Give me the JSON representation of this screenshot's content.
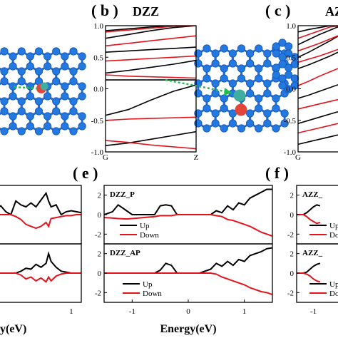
{
  "panel_labels": {
    "b": "( b )",
    "c": "( c )",
    "e": "( e )",
    "f": "( f )"
  },
  "titles": {
    "b": "DZZ",
    "c": "AZ"
  },
  "colors": {
    "up": "#000000",
    "down": "#e4131b",
    "atom": "#2379e0",
    "bond": "#2a6fd0",
    "arrow": "#1fbf4a",
    "defect_red": "#e2453c",
    "defect_teal": "#3fae9f"
  },
  "band_b": {
    "xticks": [
      "G",
      "Z"
    ],
    "yticks": [
      "1.0",
      "0.5",
      "0.0",
      "-0.5",
      "-1.0"
    ]
  },
  "band_c": {
    "xticks": [
      "G"
    ],
    "yticks": [
      "1.0",
      "0.5",
      "0.0",
      "-0.5",
      "-1.0"
    ]
  },
  "dos_e_top": {
    "label": "DZZ_P",
    "legend": [
      "Up",
      "Down"
    ],
    "yticks": [
      "2",
      "0",
      "-2"
    ]
  },
  "dos_e_bot": {
    "label": "DZZ_AP",
    "legend": [
      "Up",
      "Down"
    ],
    "yticks": [
      "2",
      "0",
      "-2"
    ]
  },
  "dos_e_xaxis": {
    "xlabel": "Energy(eV)",
    "xticks": [
      "-1",
      "0",
      "1"
    ]
  },
  "dos_f_top": {
    "label": "AZZ_",
    "legend": [
      "Up",
      "Do"
    ],
    "yticks": [
      "2",
      "0",
      "-2"
    ]
  },
  "dos_f_bot": {
    "label": "AZZ_",
    "legend": [
      "Up",
      "Do"
    ],
    "yticks": [
      "2",
      "0",
      "-2"
    ]
  },
  "dos_f_xaxis": {
    "xticks": [
      "-1"
    ]
  },
  "dos_d_xaxis": {
    "xlabel": "y(eV)",
    "xticks": [
      "1"
    ]
  },
  "chart_data": [
    {
      "type": "line",
      "panel": "b",
      "title": "DZZ",
      "xlabel": "",
      "ylabel": "",
      "ylim": [
        -1.0,
        1.0
      ],
      "x": [
        0,
        0.25,
        0.5,
        0.75,
        1.0
      ],
      "series": [
        {
          "spin": "up",
          "values": [
            0.92,
            0.95,
            0.98,
            1.0,
            1.0
          ]
        },
        {
          "spin": "up",
          "values": [
            0.8,
            0.86,
            0.92,
            0.97,
            1.0
          ]
        },
        {
          "spin": "up",
          "values": [
            0.58,
            0.6,
            0.62,
            0.64,
            0.66
          ]
        },
        {
          "spin": "up",
          "values": [
            0.25,
            0.29,
            0.34,
            0.39,
            0.45
          ]
        },
        {
          "spin": "up",
          "values": [
            0.14,
            0.14,
            0.14,
            0.14,
            0.14
          ]
        },
        {
          "spin": "up",
          "values": [
            -0.42,
            -0.33,
            -0.18,
            -0.04,
            0.06
          ]
        },
        {
          "spin": "up",
          "values": [
            -0.9,
            -0.86,
            -0.8,
            -0.74,
            -0.68
          ]
        },
        {
          "spin": "down",
          "values": [
            0.9,
            0.93,
            0.96,
            0.99,
            1.0
          ]
        },
        {
          "spin": "down",
          "values": [
            0.68,
            0.72,
            0.76,
            0.8,
            0.84
          ]
        },
        {
          "spin": "down",
          "values": [
            0.44,
            0.46,
            0.48,
            0.5,
            0.52
          ]
        },
        {
          "spin": "down",
          "values": [
            0.22,
            0.2,
            0.19,
            0.18,
            0.17
          ]
        },
        {
          "spin": "down",
          "values": [
            -0.5,
            -0.48,
            -0.47,
            -0.46,
            -0.45
          ]
        },
        {
          "spin": "down",
          "values": [
            -0.82,
            -0.85,
            -0.89,
            -0.92,
            -0.95
          ]
        }
      ]
    },
    {
      "type": "line",
      "panel": "c",
      "title": "AZ",
      "ylim": [
        -1.0,
        1.0
      ],
      "x": [
        0,
        0.25,
        0.5,
        0.75,
        1.0
      ],
      "series": [
        {
          "spin": "up",
          "values": [
            0.9,
            0.94,
            0.97,
            1.0,
            1.0
          ]
        },
        {
          "spin": "up",
          "values": [
            0.7,
            0.78,
            0.86,
            0.93,
            1.0
          ]
        },
        {
          "spin": "up",
          "values": [
            0.5,
            0.58,
            0.67,
            0.76,
            0.86
          ]
        },
        {
          "spin": "up",
          "values": [
            0.32,
            0.38,
            0.45,
            0.52,
            0.6
          ]
        },
        {
          "spin": "up",
          "values": [
            -0.15,
            -0.1,
            -0.04,
            0.02,
            0.08
          ]
        },
        {
          "spin": "up",
          "values": [
            -0.55,
            -0.5,
            -0.45,
            -0.4,
            -0.35
          ]
        },
        {
          "spin": "up",
          "values": [
            -0.88,
            -0.84,
            -0.8,
            -0.76,
            -0.72
          ]
        },
        {
          "spin": "down",
          "values": [
            0.8,
            0.86,
            0.92,
            0.98,
            1.0
          ]
        },
        {
          "spin": "down",
          "values": [
            0.6,
            0.66,
            0.72,
            0.79,
            0.86
          ]
        },
        {
          "spin": "down",
          "values": [
            0.42,
            0.47,
            0.52,
            0.58,
            0.64
          ]
        },
        {
          "spin": "down",
          "values": [
            0.05,
            0.12,
            0.2,
            0.27,
            0.34
          ]
        },
        {
          "spin": "down",
          "values": [
            -0.32,
            -0.28,
            -0.24,
            -0.2,
            -0.16
          ]
        },
        {
          "spin": "down",
          "values": [
            -0.7,
            -0.66,
            -0.62,
            -0.58,
            -0.54
          ]
        }
      ]
    },
    {
      "type": "line",
      "panel": "e-top",
      "label": "DZZ_P",
      "xlim": [
        -1.5,
        1.5
      ],
      "ylim": [
        -3,
        3
      ],
      "x": [
        -1.5,
        -1.35,
        -1.25,
        -1.1,
        -1.0,
        -0.8,
        -0.6,
        -0.5,
        -0.4,
        -0.3,
        -0.2,
        -0.1,
        0.0,
        0.2,
        0.4,
        0.5,
        0.6,
        0.7,
        0.8,
        0.9,
        1.0,
        1.1,
        1.2,
        1.3,
        1.4,
        1.5
      ],
      "series": [
        {
          "name": "Up",
          "values": [
            0.0,
            0.3,
            1.0,
            0.4,
            0.0,
            0.0,
            0.0,
            0.9,
            1.0,
            0.9,
            0.0,
            0.0,
            0.0,
            0.0,
            0.0,
            0.4,
            0.2,
            0.9,
            0.5,
            1.2,
            1.0,
            1.7,
            2.0,
            2.3,
            2.6,
            2.6
          ]
        },
        {
          "name": "Down",
          "values": [
            -0.3,
            -0.35,
            -0.4,
            -0.45,
            -0.4,
            -0.3,
            -0.2,
            -0.1,
            -0.1,
            -0.1,
            0.0,
            0.0,
            0.0,
            0.0,
            0.0,
            -0.1,
            -0.2,
            -0.5,
            -0.6,
            -0.8,
            -1.0,
            -1.2,
            -1.5,
            -1.8,
            -2.0,
            -2.2
          ]
        }
      ]
    },
    {
      "type": "line",
      "panel": "e-bottom",
      "label": "DZZ_AP",
      "xlim": [
        -1.5,
        1.5
      ],
      "ylim": [
        -3,
        3
      ],
      "x": [
        -1.5,
        -1.35,
        -1.25,
        -1.1,
        -1.0,
        -0.8,
        -0.6,
        -0.5,
        -0.4,
        -0.3,
        -0.2,
        -0.1,
        0.0,
        0.2,
        0.4,
        0.5,
        0.6,
        0.7,
        0.8,
        0.9,
        1.0,
        1.1,
        1.2,
        1.3,
        1.4,
        1.5
      ],
      "series": [
        {
          "name": "Up",
          "values": [
            0.0,
            0.0,
            0.0,
            0.0,
            0.0,
            0.0,
            0.0,
            0.3,
            1.0,
            0.8,
            0.0,
            0.0,
            0.0,
            0.0,
            0.4,
            1.0,
            0.7,
            1.2,
            0.8,
            1.4,
            1.2,
            1.8,
            2.0,
            2.2,
            2.5,
            2.6
          ]
        },
        {
          "name": "Down",
          "values": [
            0.0,
            0.0,
            0.0,
            0.0,
            0.0,
            0.0,
            0.0,
            0.0,
            0.0,
            0.0,
            0.0,
            0.0,
            0.0,
            0.0,
            0.0,
            -0.1,
            -0.4,
            -0.6,
            -0.8,
            -1.0,
            -1.2,
            -1.5,
            -1.7,
            -1.9,
            -2.0,
            -2.2
          ]
        }
      ]
    },
    {
      "type": "line",
      "panel": "d-top",
      "xlim": [
        -0.5,
        1.2
      ],
      "ylim": [
        -3,
        3
      ],
      "x": [
        -0.5,
        -0.4,
        -0.3,
        -0.2,
        -0.1,
        0.0,
        0.1,
        0.2,
        0.3,
        0.4,
        0.5,
        0.55,
        0.6,
        0.7,
        0.8,
        0.9,
        1.0,
        1.1,
        1.2
      ],
      "series": [
        {
          "name": "Up",
          "values": [
            0.6,
            0.9,
            0.3,
            0.0,
            1.4,
            1.0,
            0.8,
            1.2,
            0.8,
            1.5,
            2.2,
            1.4,
            0.8,
            1.0,
            0.0,
            0.3,
            0.4,
            0.3,
            0.2
          ]
        },
        {
          "name": "Down",
          "values": [
            0.0,
            0.0,
            0.0,
            0.0,
            -0.2,
            -0.5,
            -1.0,
            -1.2,
            -1.4,
            -1.2,
            -0.8,
            -1.2,
            -0.4,
            -0.3,
            -0.2,
            -0.1,
            -0.1,
            0.0,
            0.0
          ]
        }
      ]
    },
    {
      "type": "line",
      "panel": "d-bottom",
      "xlim": [
        -0.5,
        1.2
      ],
      "ylim": [
        -3,
        3
      ],
      "x": [
        -0.5,
        -0.4,
        -0.3,
        -0.2,
        -0.1,
        0.0,
        0.1,
        0.2,
        0.3,
        0.4,
        0.5,
        0.55,
        0.6,
        0.7,
        0.8,
        0.9,
        1.0,
        1.1,
        1.2
      ],
      "series": [
        {
          "name": "Up",
          "values": [
            0.0,
            0.0,
            0.0,
            0.0,
            0.0,
            0.2,
            0.5,
            0.4,
            0.9,
            0.6,
            1.0,
            2.0,
            1.2,
            0.6,
            0.2,
            0.1,
            0.0,
            0.0,
            0.0
          ]
        },
        {
          "name": "Down",
          "values": [
            0.0,
            0.0,
            0.0,
            0.0,
            0.0,
            -0.2,
            -0.6,
            -0.4,
            -0.8,
            -0.5,
            -0.9,
            -0.4,
            -0.8,
            -0.3,
            -0.1,
            0.0,
            0.0,
            0.0,
            0.0
          ]
        }
      ]
    },
    {
      "type": "line",
      "panel": "f-top",
      "label": "AZZ_",
      "xlim": [
        -1.5,
        0.2
      ],
      "ylim": [
        -3,
        3
      ],
      "x": [
        -1.5,
        -1.4,
        -1.3,
        -1.2,
        -1.1,
        -1.0,
        -0.9,
        -0.8
      ],
      "series": [
        {
          "name": "Up",
          "values": [
            0.0,
            0.0,
            0.0,
            0.2,
            0.5,
            0.8,
            1.0,
            0.9
          ]
        },
        {
          "name": "Do",
          "values": [
            0.0,
            0.0,
            0.0,
            -0.2,
            -0.5,
            -0.7,
            -0.9,
            -0.8
          ]
        }
      ]
    },
    {
      "type": "line",
      "panel": "f-bottom",
      "label": "AZZ_",
      "xlim": [
        -1.5,
        0.2
      ],
      "ylim": [
        -3,
        3
      ],
      "x": [
        -1.5,
        -1.4,
        -1.3,
        -1.2,
        -1.1,
        -1.0,
        -0.9,
        -0.8
      ],
      "series": [
        {
          "name": "Up",
          "values": [
            0.0,
            0.0,
            0.0,
            0.1,
            0.4,
            0.7,
            0.9,
            1.0
          ]
        },
        {
          "name": "Do",
          "values": [
            0.0,
            0.0,
            0.0,
            -0.1,
            -0.3,
            -0.6,
            -0.8,
            -0.9
          ]
        }
      ]
    }
  ]
}
